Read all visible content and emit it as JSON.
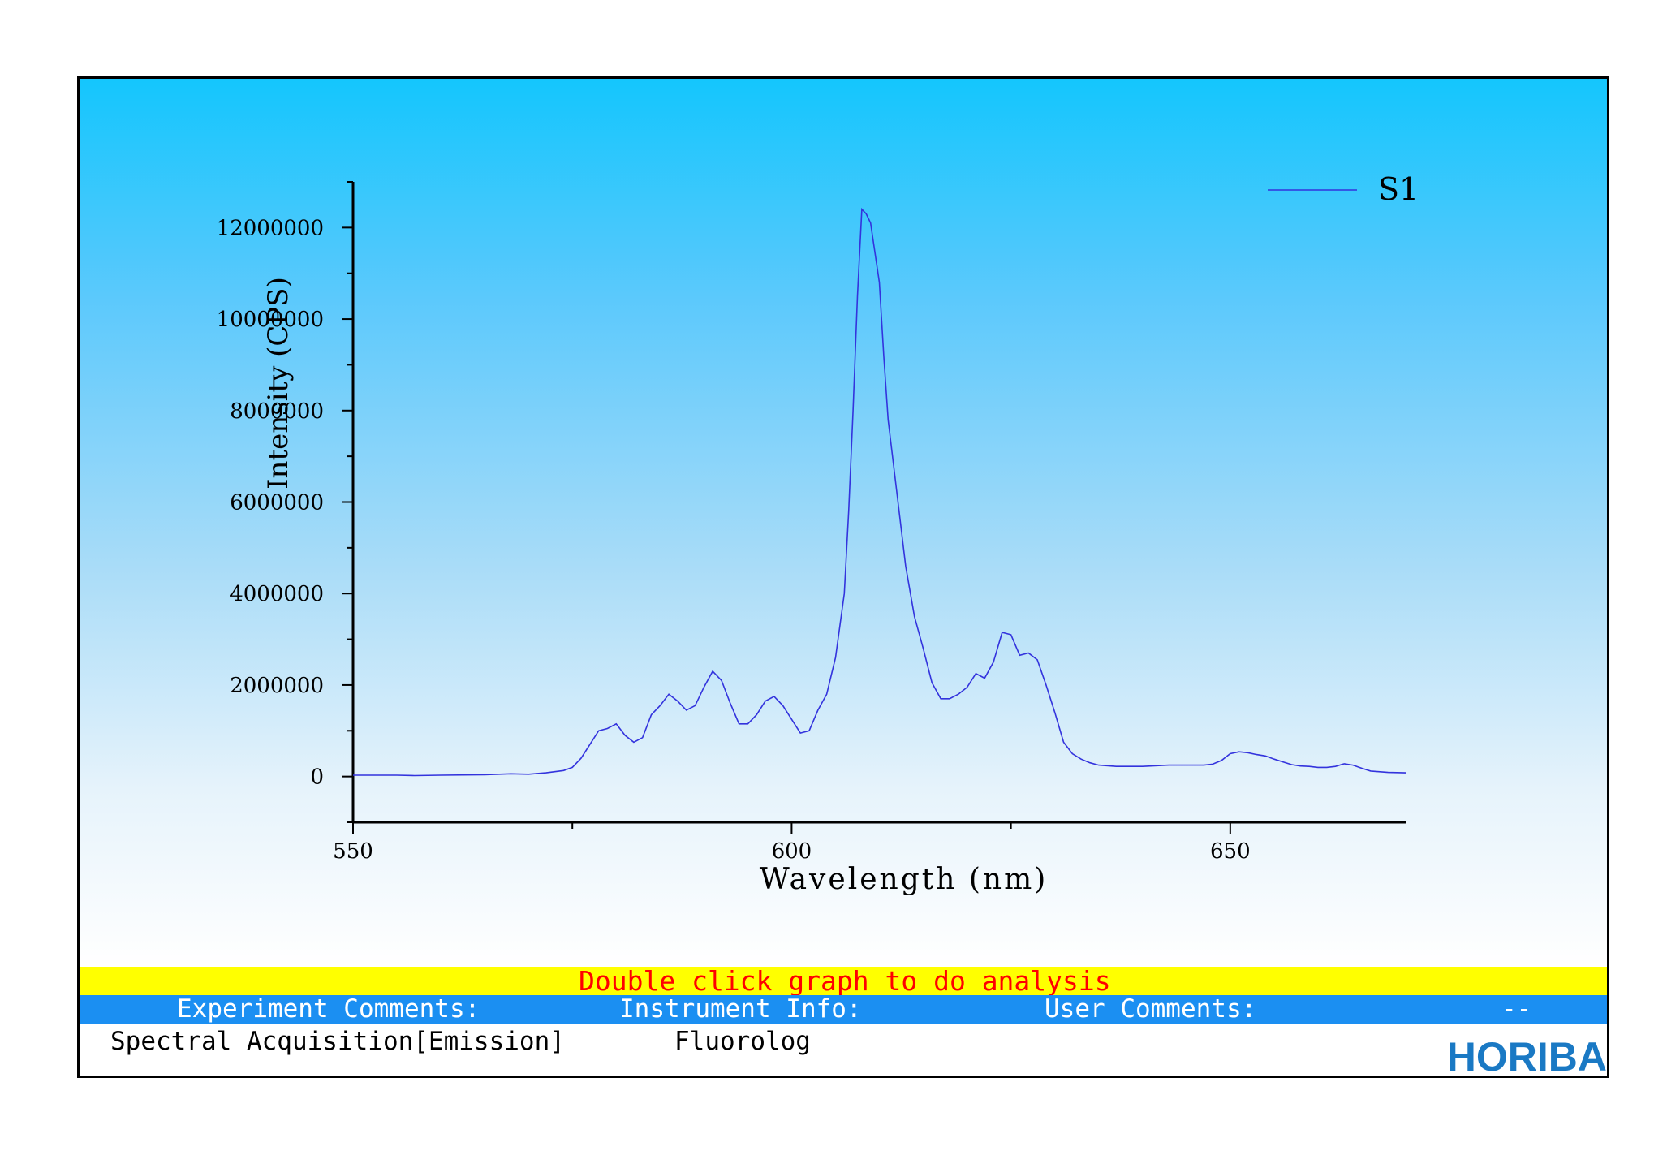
{
  "chart_data": {
    "type": "line",
    "xlabel": "Wavelength (nm)",
    "ylabel": "Intensity (CPS)",
    "xlim": [
      550,
      670
    ],
    "ylim": [
      -1000000,
      13000000
    ],
    "x_ticks": [
      550,
      600,
      650
    ],
    "y_ticks": [
      0,
      2000000,
      4000000,
      6000000,
      8000000,
      10000000,
      12000000
    ],
    "x_tick_labels": [
      "550",
      "600",
      "650"
    ],
    "y_tick_labels": [
      "0",
      "2000000",
      "4000000",
      "6000000",
      "8000000",
      "10000000",
      "12000000"
    ],
    "legend_position": "top-right",
    "series": [
      {
        "name": "S1",
        "color": "#3333dd",
        "x": [
          550,
          555,
          557,
          560,
          565,
          568,
          570,
          572,
          574,
          575,
          576,
          577,
          578,
          579,
          580,
          581,
          582,
          583,
          584,
          585,
          586,
          587,
          588,
          589,
          590,
          591,
          592,
          593,
          594,
          595,
          596,
          597,
          598,
          599,
          600,
          601,
          602,
          603,
          604,
          605,
          606,
          606.5,
          607,
          607.5,
          608,
          608.5,
          609,
          610,
          610.5,
          611,
          612,
          613,
          614,
          615,
          616,
          617,
          618,
          619,
          620,
          621,
          622,
          623,
          624,
          625,
          626,
          627,
          628,
          629,
          630,
          631,
          632,
          633,
          634,
          635,
          637,
          640,
          643,
          645,
          647,
          648,
          649,
          650,
          651,
          652,
          653,
          654,
          655,
          656,
          657,
          658,
          659,
          660,
          661,
          662,
          663,
          664,
          665,
          666,
          668,
          670
        ],
        "y": [
          30000,
          30000,
          20000,
          30000,
          40000,
          60000,
          50000,
          80000,
          130000,
          200000,
          400000,
          700000,
          1000000,
          1050000,
          1150000,
          900000,
          750000,
          850000,
          1350000,
          1550000,
          1800000,
          1650000,
          1450000,
          1550000,
          1950000,
          2300000,
          2100000,
          1600000,
          1150000,
          1150000,
          1350000,
          1650000,
          1750000,
          1550000,
          1250000,
          950000,
          1000000,
          1450000,
          1800000,
          2600000,
          4000000,
          5800000,
          8000000,
          10500000,
          12400000,
          12300000,
          12100000,
          10800000,
          9200000,
          7800000,
          6200000,
          4600000,
          3500000,
          2800000,
          2050000,
          1700000,
          1700000,
          1800000,
          1950000,
          2250000,
          2150000,
          2500000,
          3150000,
          3100000,
          2650000,
          2700000,
          2550000,
          2000000,
          1400000,
          750000,
          500000,
          380000,
          300000,
          250000,
          220000,
          220000,
          250000,
          250000,
          250000,
          270000,
          350000,
          500000,
          540000,
          520000,
          480000,
          450000,
          380000,
          320000,
          260000,
          230000,
          220000,
          200000,
          200000,
          220000,
          280000,
          250000,
          180000,
          120000,
          90000,
          80000
        ]
      }
    ]
  },
  "status": {
    "hint": "Double click graph to do analysis",
    "experiment_label": "Experiment Comments:",
    "instrument_label": "Instrument Info:",
    "user_label": "User Comments:",
    "dash": "--",
    "experiment_value": "Spectral Acquisition[Emission]",
    "instrument_value": "Fluorolog"
  },
  "logo": "HORIBA"
}
